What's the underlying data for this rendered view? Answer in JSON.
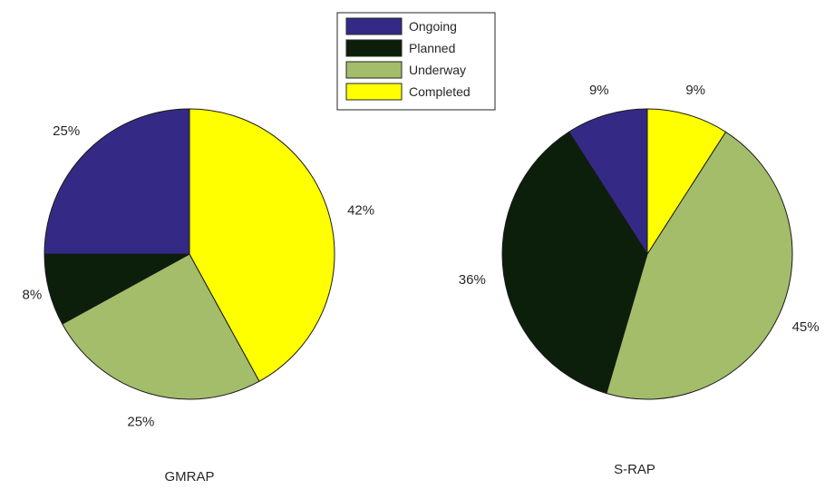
{
  "chart_data": {
    "type": "pie",
    "legend": {
      "placement": "top-center",
      "entries": [
        {
          "name": "Ongoing",
          "color": "#342a86"
        },
        {
          "name": "Planned",
          "color": "#0b1f0b"
        },
        {
          "name": "Underway",
          "color": "#a3bd6a"
        },
        {
          "name": "Completed",
          "color": "#ffff00"
        }
      ]
    },
    "charts": [
      {
        "title": "GMRAP",
        "slices": [
          {
            "category": "Ongoing",
            "value": 25,
            "label": "25%"
          },
          {
            "category": "Planned",
            "value": 8,
            "label": "8%"
          },
          {
            "category": "Underway",
            "value": 25,
            "label": "25%"
          },
          {
            "category": "Completed",
            "value": 42,
            "label": "42%"
          }
        ]
      },
      {
        "title": "S-RAP",
        "slices": [
          {
            "category": "Ongoing",
            "value": 9,
            "label": "9%"
          },
          {
            "category": "Planned",
            "value": 36,
            "label": "36%"
          },
          {
            "category": "Underway",
            "value": 45,
            "label": "45%"
          },
          {
            "category": "Completed",
            "value": 9,
            "label": "9%"
          }
        ]
      }
    ]
  }
}
